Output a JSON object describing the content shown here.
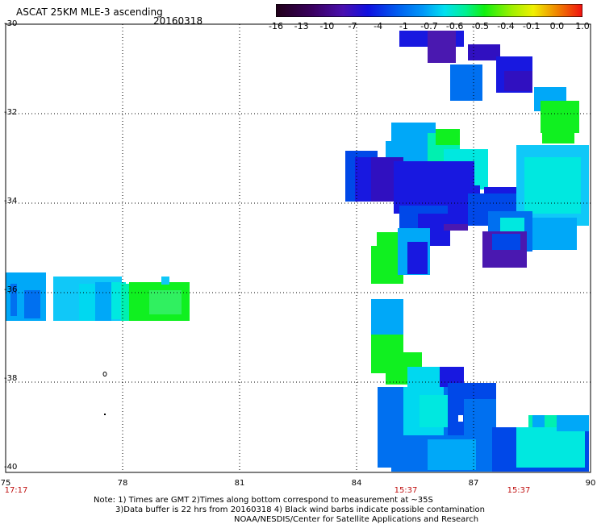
{
  "header": {
    "title": "ASCAT 25KM MLE-3 ascending",
    "date": "20160318"
  },
  "colorbar": {
    "tick_labels": [
      "-16",
      "-13",
      "-10",
      "-7",
      "-4",
      "-1",
      "-0.7",
      "-0.6",
      "-0.5",
      "-0.4",
      "-0.1",
      "0.0",
      "1.0"
    ],
    "colors": [
      "#200020",
      "#400060",
      "#5010a0",
      "#2020d0",
      "#0050f0",
      "#0090f0",
      "#00d0f0",
      "#00f0c0",
      "#20f020",
      "#a0f000",
      "#f0f000",
      "#f08000",
      "#f02000"
    ]
  },
  "map": {
    "lon_labels": [
      "75",
      "78",
      "81",
      "84",
      "87",
      "90"
    ],
    "lat_labels": [
      "-30",
      "-32",
      "-34",
      "-36",
      "-38",
      "-40"
    ],
    "time_labels": [
      "17:17",
      "15:37",
      "15:37"
    ]
  },
  "notes": {
    "line1": "Note: 1) Times are GMT 2)Times along bottom correspond to measurement at ~35S",
    "line2": "3)Data buffer is 22 hrs from 20160318 4) Black wind barbs indicate possible contamination",
    "line3": "NOAA/NESDIS/Center for Satellite Applications and Research"
  }
}
